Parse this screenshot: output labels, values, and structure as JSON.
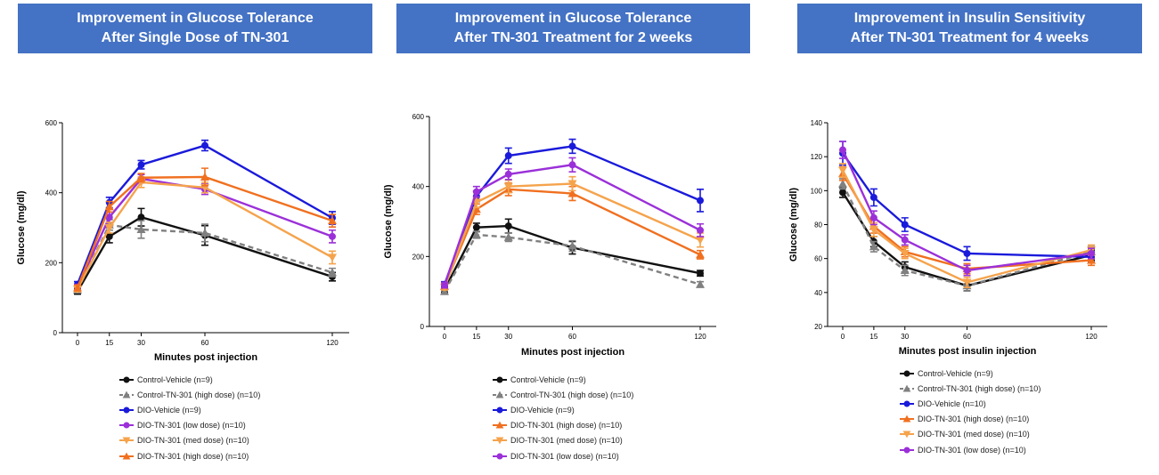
{
  "colors": {
    "banner": "#4472c4",
    "control_vehicle": "#111111",
    "control_tn301": "#808080",
    "dio_vehicle": "#1a1adb",
    "dio_low": "#9b30d9",
    "dio_med": "#f5a34c",
    "dio_high": "#f07020"
  },
  "chart_data": [
    {
      "type": "line",
      "title_line1": "Improvement in Glucose Tolerance",
      "title_line2": "After Single Dose of TN-301",
      "xlabel": "Minutes post injection",
      "ylabel": "Glucose (mg/dl)",
      "x": [
        0,
        15,
        30,
        60,
        120
      ],
      "xticks": [
        "0",
        "15",
        "30",
        "60",
        "120"
      ],
      "yticks": [
        0,
        200,
        400,
        600
      ],
      "ytick_labels": [
        "0",
        "200",
        "400",
        "600"
      ],
      "ylim": [
        0,
        600
      ],
      "legend_placement": "bottom",
      "series": [
        {
          "name": "Control-Vehicle (n=9)",
          "key": "control_vehicle",
          "marker": "circle",
          "dash": false,
          "values": [
            118,
            275,
            330,
            278,
            160
          ],
          "err": [
            8,
            18,
            25,
            28,
            12
          ]
        },
        {
          "name": "Control-TN-301 (high dose) (n=10)",
          "key": "control_tn301",
          "marker": "triangle-up",
          "dash": true,
          "values": [
            122,
            308,
            295,
            285,
            172
          ],
          "err": [
            8,
            15,
            25,
            25,
            12
          ]
        },
        {
          "name": "DIO-Vehicle (n=9)",
          "key": "dio_vehicle",
          "marker": "circle",
          "dash": false,
          "values": [
            138,
            372,
            480,
            535,
            328
          ],
          "err": [
            8,
            15,
            12,
            15,
            18
          ]
        },
        {
          "name": "DIO-TN-301 (low dose) (n=10)",
          "key": "dio_low",
          "marker": "circle",
          "dash": false,
          "values": [
            130,
            330,
            440,
            410,
            275
          ],
          "err": [
            8,
            15,
            12,
            15,
            18
          ]
        },
        {
          "name": "DIO-TN-301 (med dose) (n=10)",
          "key": "dio_med",
          "marker": "triangle-down",
          "dash": false,
          "values": [
            125,
            300,
            430,
            415,
            215
          ],
          "err": [
            8,
            15,
            15,
            15,
            18
          ]
        },
        {
          "name": "DIO-TN-301 (high dose) (n=10)",
          "key": "dio_high",
          "marker": "triangle-up",
          "dash": false,
          "values": [
            128,
            360,
            443,
            445,
            320
          ],
          "err": [
            8,
            15,
            12,
            25,
            18
          ]
        }
      ]
    },
    {
      "type": "line",
      "title_line1": "Improvement in Glucose Tolerance",
      "title_line2": "After TN-301 Treatment for 2 weeks",
      "xlabel": "Minutes post injection",
      "ylabel": "Glucose (mg/dl)",
      "x": [
        0,
        15,
        30,
        60,
        120
      ],
      "xticks": [
        "0",
        "15",
        "30",
        "60",
        "120"
      ],
      "yticks": [
        0,
        200,
        400,
        600
      ],
      "ytick_labels": [
        "0",
        "200",
        "400",
        "600"
      ],
      "ylim": [
        0,
        600
      ],
      "legend_placement": "bottom",
      "series": [
        {
          "name": "Control-Vehicle (n=9)",
          "key": "control_vehicle",
          "marker": "circle",
          "dash": false,
          "values": [
            105,
            283,
            287,
            225,
            152
          ],
          "err": [
            8,
            12,
            20,
            18,
            8
          ]
        },
        {
          "name": "Control-TN-301 (high dose) (n=10)",
          "key": "control_tn301",
          "marker": "triangle-up",
          "dash": true,
          "values": [
            100,
            262,
            255,
            230,
            120
          ],
          "err": [
            8,
            10,
            12,
            15,
            8
          ]
        },
        {
          "name": "DIO-Vehicle (n=9)",
          "key": "dio_vehicle",
          "marker": "circle",
          "dash": false,
          "values": [
            120,
            372,
            488,
            515,
            360
          ],
          "err": [
            8,
            15,
            22,
            20,
            32
          ]
        },
        {
          "name": "DIO-TN-301 (high dose) (n=10)",
          "key": "dio_high",
          "marker": "triangle-up",
          "dash": false,
          "values": [
            115,
            335,
            392,
            380,
            205
          ],
          "err": [
            8,
            15,
            18,
            20,
            12
          ]
        },
        {
          "name": "DIO-TN-301 (med dose) (n=10)",
          "key": "dio_med",
          "marker": "triangle-down",
          "dash": false,
          "values": [
            112,
            355,
            400,
            408,
            247
          ],
          "err": [
            8,
            15,
            18,
            20,
            20
          ]
        },
        {
          "name": "DIO-TN-301 (low dose) (n=10)",
          "key": "dio_low",
          "marker": "circle",
          "dash": false,
          "values": [
            118,
            385,
            435,
            462,
            275
          ],
          "err": [
            8,
            15,
            15,
            20,
            18
          ]
        }
      ]
    },
    {
      "type": "line",
      "title_line1": "Improvement in Insulin Sensitivity",
      "title_line2": "After TN-301 Treatment for 4 weeks",
      "xlabel": "Minutes post insulin injection",
      "ylabel": "Glucose (mg/dl)",
      "x": [
        0,
        15,
        30,
        60,
        120
      ],
      "xticks": [
        "0",
        "15",
        "30",
        "60",
        "120"
      ],
      "yticks": [
        20,
        40,
        60,
        80,
        100,
        120,
        140
      ],
      "ytick_labels": [
        "20",
        "40",
        "60",
        "80",
        "100",
        "120",
        "140"
      ],
      "ylim": [
        20,
        140
      ],
      "legend_placement": "bottom",
      "series": [
        {
          "name": "Control-Vehicle (n=9)",
          "key": "control_vehicle",
          "marker": "circle",
          "dash": false,
          "values": [
            99,
            70,
            55,
            44,
            62
          ],
          "err": [
            3,
            3,
            3,
            3,
            3
          ]
        },
        {
          "name": "Control-TN-301 (high dose) (n=10)",
          "key": "control_tn301",
          "marker": "triangle-up",
          "dash": true,
          "values": [
            104,
            67,
            53,
            44,
            64
          ],
          "err": [
            3,
            3,
            3,
            3,
            3
          ]
        },
        {
          "name": "DIO-Vehicle (n=10)",
          "key": "dio_vehicle",
          "marker": "circle",
          "dash": false,
          "values": [
            122,
            96,
            80,
            63,
            61
          ],
          "err": [
            7,
            5,
            4,
            4,
            3
          ]
        },
        {
          "name": "DIO-TN-301 (high dose) (n=10)",
          "key": "dio_high",
          "marker": "triangle-up",
          "dash": false,
          "values": [
            110,
            79,
            64,
            54,
            59
          ],
          "err": [
            4,
            4,
            3,
            3,
            3
          ]
        },
        {
          "name": "DIO-TN-301 (med dose) (n=10)",
          "key": "dio_med",
          "marker": "triangle-down",
          "dash": false,
          "values": [
            112,
            77,
            63,
            46,
            65
          ],
          "err": [
            4,
            4,
            3,
            3,
            3
          ]
        },
        {
          "name": "DIO-TN-301 (low dose) (n=10)",
          "key": "dio_low",
          "marker": "circle",
          "dash": false,
          "values": [
            124,
            84,
            71,
            53,
            63
          ],
          "err": [
            5,
            4,
            3,
            3,
            3
          ]
        }
      ]
    }
  ]
}
